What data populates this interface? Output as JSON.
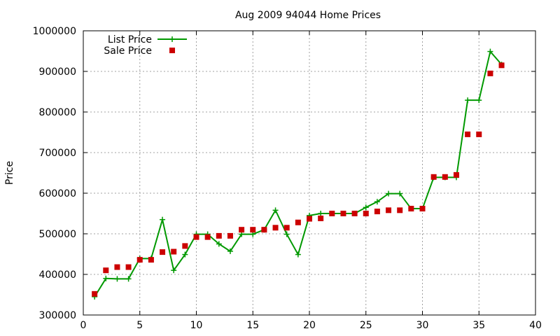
{
  "chart_data": {
    "type": "line",
    "title": "Aug 2009 94044 Home Prices",
    "xlabel": "",
    "ylabel": "Price",
    "xlim": [
      0,
      40
    ],
    "ylim": [
      300000,
      1000000
    ],
    "x_ticks": [
      0,
      5,
      10,
      15,
      20,
      25,
      30,
      35,
      40
    ],
    "y_ticks": [
      300000,
      400000,
      500000,
      600000,
      700000,
      800000,
      900000,
      1000000
    ],
    "grid": true,
    "legend_position": "top-left",
    "series": [
      {
        "name": "List Price",
        "style": "lines+crosses",
        "color": "#009900",
        "x": [
          1,
          2,
          3,
          4,
          5,
          6,
          7,
          8,
          9,
          10,
          11,
          12,
          13,
          14,
          15,
          16,
          17,
          18,
          19,
          20,
          21,
          22,
          23,
          24,
          25,
          26,
          27,
          28,
          29,
          30,
          31,
          32,
          33,
          34,
          35,
          36,
          37
        ],
        "values": [
          345000,
          390000,
          389000,
          389000,
          439000,
          439000,
          535000,
          410000,
          449000,
          499000,
          499000,
          475000,
          457000,
          499000,
          499000,
          510000,
          558000,
          499000,
          449000,
          545000,
          550000,
          550000,
          550000,
          550000,
          565000,
          579000,
          599000,
          599000,
          562000,
          562000,
          639000,
          639000,
          639000,
          829000,
          829000,
          949000,
          917000
        ]
      },
      {
        "name": "Sale Price",
        "style": "squares",
        "color": "#cc0000",
        "x": [
          1,
          2,
          3,
          4,
          5,
          6,
          7,
          8,
          9,
          10,
          11,
          12,
          13,
          14,
          15,
          16,
          17,
          18,
          19,
          20,
          21,
          22,
          23,
          24,
          25,
          26,
          27,
          28,
          29,
          30,
          31,
          32,
          33,
          34,
          35,
          36,
          37
        ],
        "values": [
          352000,
          410000,
          418000,
          418000,
          436000,
          436000,
          455000,
          456000,
          470000,
          492000,
          492000,
          495000,
          495000,
          510000,
          510000,
          510000,
          515000,
          515000,
          528000,
          537000,
          538000,
          550000,
          550000,
          550000,
          550000,
          555000,
          558000,
          558000,
          562000,
          562000,
          640000,
          640000,
          645000,
          745000,
          745000,
          895000,
          915000
        ]
      }
    ]
  }
}
